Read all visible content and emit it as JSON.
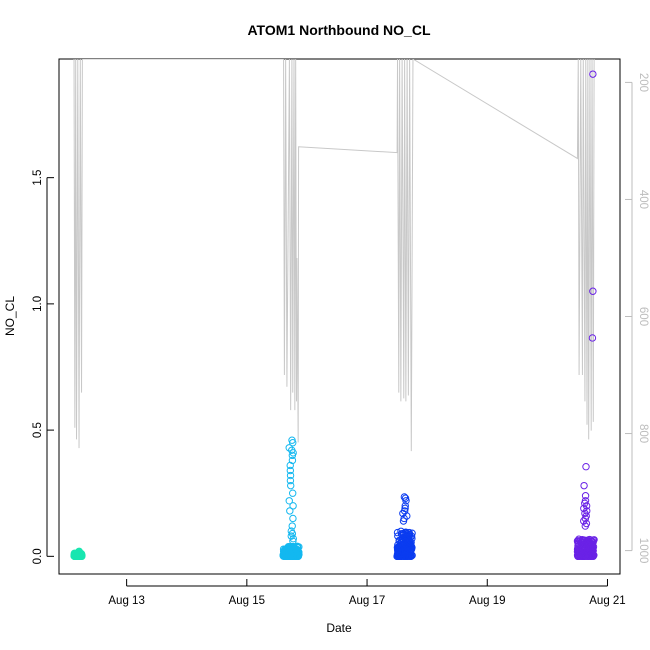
{
  "chart_data": {
    "type": "scatter",
    "title": "ATOM1 Northbound NO_CL",
    "xlabel": "Date",
    "ylabel": "NO_CL",
    "x_range": [
      "2024-08-11T21:00",
      "2024-08-21T05:00"
    ],
    "ylim": [
      -0.07,
      1.97
    ],
    "x_ticks": [
      {
        "date": "2024-08-13T00:00",
        "label": "Aug 13"
      },
      {
        "date": "2024-08-15T00:00",
        "label": "Aug 15"
      },
      {
        "date": "2024-08-17T00:00",
        "label": "Aug 17"
      },
      {
        "date": "2024-08-19T00:00",
        "label": "Aug 19"
      },
      {
        "date": "2024-08-21T00:00",
        "label": "Aug 21"
      }
    ],
    "y_ticks": [
      {
        "value": 0.0,
        "label": "0.0"
      },
      {
        "value": 0.5,
        "label": "0.5"
      },
      {
        "value": 1.0,
        "label": "1.0"
      },
      {
        "value": 1.5,
        "label": "1.5"
      }
    ],
    "secondary_axis": {
      "side": "right",
      "color": "#bdbdbd",
      "reversed": true,
      "range": [
        1040,
        160
      ],
      "ticks": [
        {
          "value": 200,
          "label": "200"
        },
        {
          "value": 400,
          "label": "400"
        },
        {
          "value": 600,
          "label": "600"
        },
        {
          "value": 800,
          "label": "800"
        },
        {
          "value": 1000,
          "label": "1000"
        }
      ]
    },
    "secondary_line": {
      "color": "#c8c8c8",
      "points": [
        [
          "2024-08-12T03:00",
          160
        ],
        [
          "2024-08-12T03:20",
          790
        ],
        [
          "2024-08-12T03:40",
          160
        ],
        [
          "2024-08-12T04:00",
          810
        ],
        [
          "2024-08-12T04:30",
          160
        ],
        [
          "2024-08-12T05:00",
          825
        ],
        [
          "2024-08-12T05:30",
          160
        ],
        [
          "2024-08-12T06:00",
          730
        ],
        [
          "2024-08-12T06:20",
          160
        ],
        [
          "2024-08-15T14:40",
          160
        ],
        [
          "2024-08-15T15:00",
          700
        ],
        [
          "2024-08-15T15:30",
          160
        ],
        [
          "2024-08-15T16:00",
          720
        ],
        [
          "2024-08-15T17:00",
          160
        ],
        [
          "2024-08-15T17:30",
          760
        ],
        [
          "2024-08-15T18:00",
          160
        ],
        [
          "2024-08-15T18:20",
          730
        ],
        [
          "2024-08-15T18:50",
          160
        ],
        [
          "2024-08-15T19:10",
          760
        ],
        [
          "2024-08-15T19:30",
          160
        ],
        [
          "2024-08-15T19:50",
          745
        ],
        [
          "2024-08-15T20:00",
          500
        ],
        [
          "2024-08-15T20:30",
          815
        ],
        [
          "2024-08-15T20:40",
          310
        ],
        [
          "2024-08-17T12:00",
          320
        ],
        [
          "2024-08-17T12:10",
          160
        ],
        [
          "2024-08-17T12:40",
          730
        ],
        [
          "2024-08-17T13:00",
          160
        ],
        [
          "2024-08-17T13:30",
          745
        ],
        [
          "2024-08-17T14:00",
          160
        ],
        [
          "2024-08-17T14:40",
          740
        ],
        [
          "2024-08-17T15:00",
          160
        ],
        [
          "2024-08-17T15:30",
          745
        ],
        [
          "2024-08-17T16:00",
          160
        ],
        [
          "2024-08-17T16:30",
          735
        ],
        [
          "2024-08-17T17:00",
          160
        ],
        [
          "2024-08-17T17:40",
          830
        ],
        [
          "2024-08-17T18:20",
          160
        ],
        [
          "2024-08-20T12:00",
          330
        ],
        [
          "2024-08-20T12:20",
          160
        ],
        [
          "2024-08-20T12:40",
          700
        ],
        [
          "2024-08-20T13:20",
          160
        ],
        [
          "2024-08-20T14:00",
          700
        ],
        [
          "2024-08-20T14:20",
          160
        ],
        [
          "2024-08-20T15:00",
          745
        ],
        [
          "2024-08-20T15:20",
          160
        ],
        [
          "2024-08-20T15:50",
          785
        ],
        [
          "2024-08-20T16:10",
          160
        ],
        [
          "2024-08-20T16:30",
          810
        ],
        [
          "2024-08-20T17:00",
          160
        ],
        [
          "2024-08-20T17:30",
          795
        ],
        [
          "2024-08-20T17:50",
          160
        ],
        [
          "2024-08-20T18:20",
          780
        ],
        [
          "2024-08-20T18:40",
          160
        ]
      ]
    },
    "series": [
      {
        "color": "#19e6b0",
        "clusters": [
          {
            "start": "2024-08-12T03:00",
            "end": "2024-08-12T06:10",
            "bulk_max": 0.012,
            "tail": [
              0.02,
              0.018,
              0.016,
              0.015
            ]
          }
        ]
      },
      {
        "color": "#13b8f0",
        "clusters": [
          {
            "start": "2024-08-15T14:30",
            "end": "2024-08-15T20:50",
            "bulk_max": 0.04,
            "tail": [
              0.46,
              0.45,
              0.43,
              0.42,
              0.41,
              0.4,
              0.38,
              0.36,
              0.34,
              0.32,
              0.3,
              0.28,
              0.25,
              0.22,
              0.2,
              0.18,
              0.15,
              0.12,
              0.1,
              0.09,
              0.08,
              0.07,
              0.06
            ]
          }
        ]
      },
      {
        "color": "#0b3cf0",
        "clusters": [
          {
            "start": "2024-08-17T12:00",
            "end": "2024-08-17T18:10",
            "bulk_max": 0.1,
            "tail": [
              0.235,
              0.23,
              0.22,
              0.2,
              0.19,
              0.18,
              0.17,
              0.16,
              0.15,
              0.14
            ]
          }
        ]
      },
      {
        "color": "#6a22e6",
        "clusters": [
          {
            "start": "2024-08-20T12:00",
            "end": "2024-08-20T18:40",
            "bulk_max": 0.07,
            "tail": [
              0.355,
              0.28,
              0.24,
              0.22,
              0.21,
              0.2,
              0.19,
              0.18,
              0.17,
              0.16,
              0.15,
              0.14,
              0.13,
              0.12
            ]
          }
        ],
        "outliers": [
          {
            "x": "2024-08-20T18:10",
            "y": 1.91
          },
          {
            "x": "2024-08-20T18:10",
            "y": 1.05
          },
          {
            "x": "2024-08-20T18:00",
            "y": 0.865
          }
        ]
      }
    ],
    "grid": false,
    "legend": "none"
  }
}
